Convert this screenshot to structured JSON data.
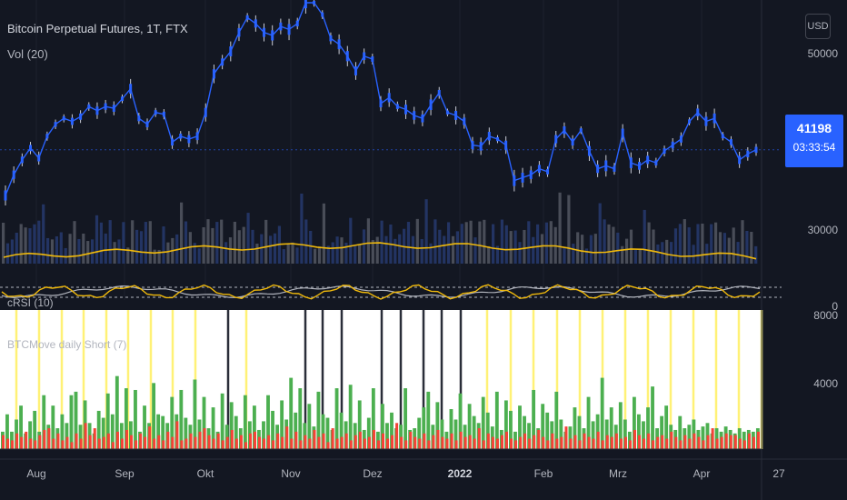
{
  "header": {
    "series_title": "Bitcoin Perpetual Futures, 1T, FTX",
    "volume_title": "Vol (20)",
    "currency": "USD"
  },
  "price_tag": {
    "value": "41198",
    "countdown": "03:33:54"
  },
  "lower_panel": {
    "rsi_title": "cRSI (10)",
    "indicator_title": "BTCMove daily Short (7)"
  },
  "colors": {
    "price": "#2962ff",
    "volume_ma": "#f0b90b",
    "green": "#4caf50",
    "red": "#f44336",
    "highlight": "#fff176",
    "panel_bg": "#ffffff"
  },
  "chart_data": [
    {
      "type": "line",
      "title": "Bitcoin Perpetual Futures, 1T, FTX",
      "x": [
        "2021-07-23",
        "2021-07-26",
        "2021-07-29",
        "2021-08-01",
        "2021-08-04",
        "2021-08-07",
        "2021-08-10",
        "2021-08-13",
        "2021-08-16",
        "2021-08-19",
        "2021-08-22",
        "2021-08-25",
        "2021-08-28",
        "2021-08-31",
        "2021-09-03",
        "2021-09-06",
        "2021-09-09",
        "2021-09-12",
        "2021-09-15",
        "2021-09-18",
        "2021-09-21",
        "2021-09-24",
        "2021-09-27",
        "2021-09-30",
        "2021-10-03",
        "2021-10-06",
        "2021-10-09",
        "2021-10-12",
        "2021-10-15",
        "2021-10-18",
        "2021-10-21",
        "2021-10-24",
        "2021-10-27",
        "2021-10-30",
        "2021-11-02",
        "2021-11-05",
        "2021-11-08",
        "2021-11-11",
        "2021-11-14",
        "2021-11-17",
        "2021-11-20",
        "2021-11-23",
        "2021-11-26",
        "2021-11-29",
        "2021-12-02",
        "2021-12-05",
        "2021-12-08",
        "2021-12-11",
        "2021-12-14",
        "2021-12-17",
        "2021-12-20",
        "2021-12-23",
        "2021-12-26",
        "2021-12-29",
        "2022-01-01",
        "2022-01-04",
        "2022-01-07",
        "2022-01-10",
        "2022-01-13",
        "2022-01-16",
        "2022-01-19",
        "2022-01-22",
        "2022-01-25",
        "2022-01-28",
        "2022-01-31",
        "2022-02-03",
        "2022-02-06",
        "2022-02-09",
        "2022-02-12",
        "2022-02-15",
        "2022-02-18",
        "2022-02-21",
        "2022-02-24",
        "2022-02-27",
        "2022-03-02",
        "2022-03-05",
        "2022-03-08",
        "2022-03-11",
        "2022-03-14",
        "2022-03-17",
        "2022-03-20",
        "2022-03-23",
        "2022-03-26",
        "2022-03-29",
        "2022-04-01",
        "2022-04-04",
        "2022-04-07",
        "2022-04-10",
        "2022-04-13",
        "2022-04-16",
        "2022-04-19"
      ],
      "y": [
        33500,
        37000,
        39500,
        41500,
        39800,
        43500,
        45500,
        46500,
        46000,
        46800,
        48500,
        47800,
        48500,
        48200,
        49800,
        51500,
        46500,
        45500,
        47500,
        47200,
        42500,
        43500,
        43000,
        43500,
        47500,
        54000,
        56000,
        57800,
        61000,
        63500,
        62500,
        61000,
        60500,
        62000,
        61500,
        62500,
        66000,
        66000,
        64000,
        60000,
        59000,
        57000,
        54500,
        57000,
        56500,
        49000,
        50000,
        48500,
        48000,
        47000,
        46500,
        48800,
        50800,
        47500,
        47000,
        46000,
        42000,
        41800,
        43500,
        43000,
        42000,
        36000,
        36500,
        37000,
        38000,
        37500,
        43000,
        44500,
        42500,
        44500,
        41000,
        38000,
        38500,
        38000,
        44000,
        39000,
        38500,
        39500,
        39000,
        41000,
        42000,
        43000,
        46000,
        47500,
        46000,
        46500,
        43500,
        42500,
        39500,
        40500,
        41198
      ],
      "ylim": [
        22000,
        68000
      ],
      "y_ticks": [
        "50000",
        "30000",
        "0"
      ],
      "x_ticks": [
        "Aug",
        "Sep",
        "Okt",
        "Nov",
        "Dez",
        "2022",
        "Feb",
        "Mrz",
        "Apr",
        "27"
      ]
    },
    {
      "type": "bar",
      "title": "BTCMove daily Short (7)",
      "ylim": [
        0,
        8000
      ],
      "y_ticks": [
        "8000",
        "4000"
      ],
      "green_values": [
        1000,
        2000,
        1000,
        1700,
        2500,
        900,
        1600,
        2200,
        1000,
        3100,
        1400,
        2500,
        1200,
        2000,
        1500,
        3100,
        3300,
        1400,
        2800,
        1500,
        900,
        2200,
        1800,
        3200,
        2000,
        4200,
        1500,
        3500,
        1600,
        3400,
        1000,
        2500,
        1500,
        3800,
        2000,
        1900,
        1500,
        3000,
        2000,
        3400,
        1800,
        1400,
        4000,
        1700,
        3000,
        1200,
        2400,
        1000,
        3200,
        1400,
        2700,
        1900,
        1200,
        3100,
        1600,
        2500,
        1100,
        1600,
        3100,
        2200,
        1400,
        2800,
        1700,
        4100,
        2100,
        3500,
        1500,
        2600,
        1300,
        3300,
        2000,
        1800,
        1100,
        3500,
        2100,
        1600,
        3700,
        1500,
        2800,
        1100,
        1800,
        3500,
        1000,
        2600,
        1500,
        2100,
        1200,
        1400,
        3500,
        1100,
        1200,
        1800,
        2400,
        3300,
        1400,
        2700,
        1700,
        1000,
        2300,
        1700,
        3200,
        1400,
        2600,
        1900,
        1500,
        3000,
        2100,
        1300,
        3300,
        1100,
        2800,
        2200,
        1000,
        2500,
        1900,
        1500,
        3400,
        1200,
        2600,
        2100,
        1600,
        3300,
        1700,
        1000,
        1300,
        2400,
        1900,
        1200,
        3000,
        1600,
        2000,
        4100,
        1700,
        2400,
        1400,
        2700,
        1700,
        1000,
        3000,
        2000,
        1600,
        2400,
        3600,
        1200,
        1900,
        2500,
        1400,
        1100,
        1900,
        1200,
        1400,
        1700,
        1100,
        1300,
        1500,
        900,
        1200,
        1000,
        1300,
        1100,
        900,
        1200,
        1000,
        1100,
        1000,
        1200
      ],
      "red_values": [
        800,
        600,
        500,
        900,
        700,
        1000,
        600,
        500,
        800,
        1100,
        1200,
        600,
        900,
        500,
        700,
        400,
        900,
        600,
        1500,
        800,
        1200,
        600,
        700,
        900,
        400,
        1000,
        600,
        1100,
        800,
        500,
        900,
        700,
        1300,
        600,
        800,
        500,
        1000,
        700,
        1600,
        500,
        600,
        900,
        700,
        1000,
        1200,
        800,
        600,
        900,
        500,
        700,
        1100,
        600,
        800,
        400,
        900,
        1000,
        700,
        600,
        800,
        500,
        900,
        700,
        1300,
        600,
        1000,
        500,
        800,
        600,
        1100,
        700,
        900,
        400,
        1200,
        600,
        700,
        900,
        500,
        800,
        1000,
        600,
        700,
        1100,
        500,
        900,
        600,
        800,
        1500,
        700,
        500,
        1000,
        700,
        600,
        900,
        500,
        800,
        1100,
        700,
        600,
        900,
        500,
        1000,
        700,
        800,
        600,
        1200,
        500,
        900,
        700,
        600,
        800,
        1000,
        600,
        500,
        700,
        900,
        600,
        800,
        1100,
        700,
        500,
        900,
        600,
        700,
        1300,
        600,
        800,
        500,
        900,
        700,
        600,
        1000,
        500,
        800,
        700,
        900,
        600,
        700,
        500,
        1100,
        800,
        600,
        900,
        500,
        700,
        800,
        600,
        1000,
        700,
        500,
        800,
        600,
        900,
        700,
        500,
        800,
        1200,
        600,
        700,
        900,
        800
      ]
    }
  ]
}
